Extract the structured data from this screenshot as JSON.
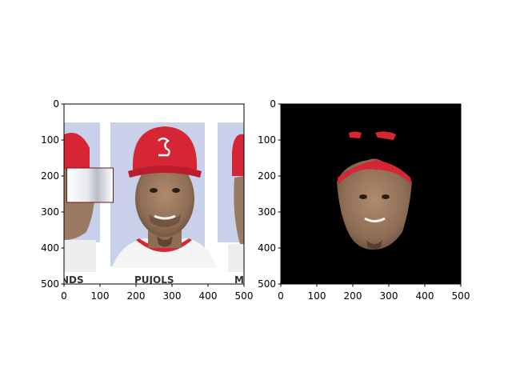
{
  "chart_data": [
    {
      "type": "image",
      "xlim": [
        0,
        500
      ],
      "ylim": [
        500,
        0
      ],
      "xticks": [
        0,
        100,
        200,
        300,
        400,
        500
      ],
      "yticks": [
        0,
        100,
        200,
        300,
        400,
        500
      ],
      "image_text": [
        "NDS",
        "PUJOLS",
        "M"
      ],
      "occlusion_patch": {
        "x": [
          5,
          135
        ],
        "y": [
          180,
          275
        ]
      }
    },
    {
      "type": "image",
      "xlim": [
        0,
        500
      ],
      "ylim": [
        500,
        0
      ],
      "xticks": [
        0,
        100,
        200,
        300,
        400,
        500
      ],
      "yticks": [
        0,
        100,
        200,
        300,
        400,
        500
      ],
      "mask_background": "#000000"
    }
  ],
  "colors": {
    "cap_red": "#d62534",
    "skin": "#9a7a62",
    "backdrop": "#c8d0ea",
    "jersey": "#f4f4f4"
  }
}
